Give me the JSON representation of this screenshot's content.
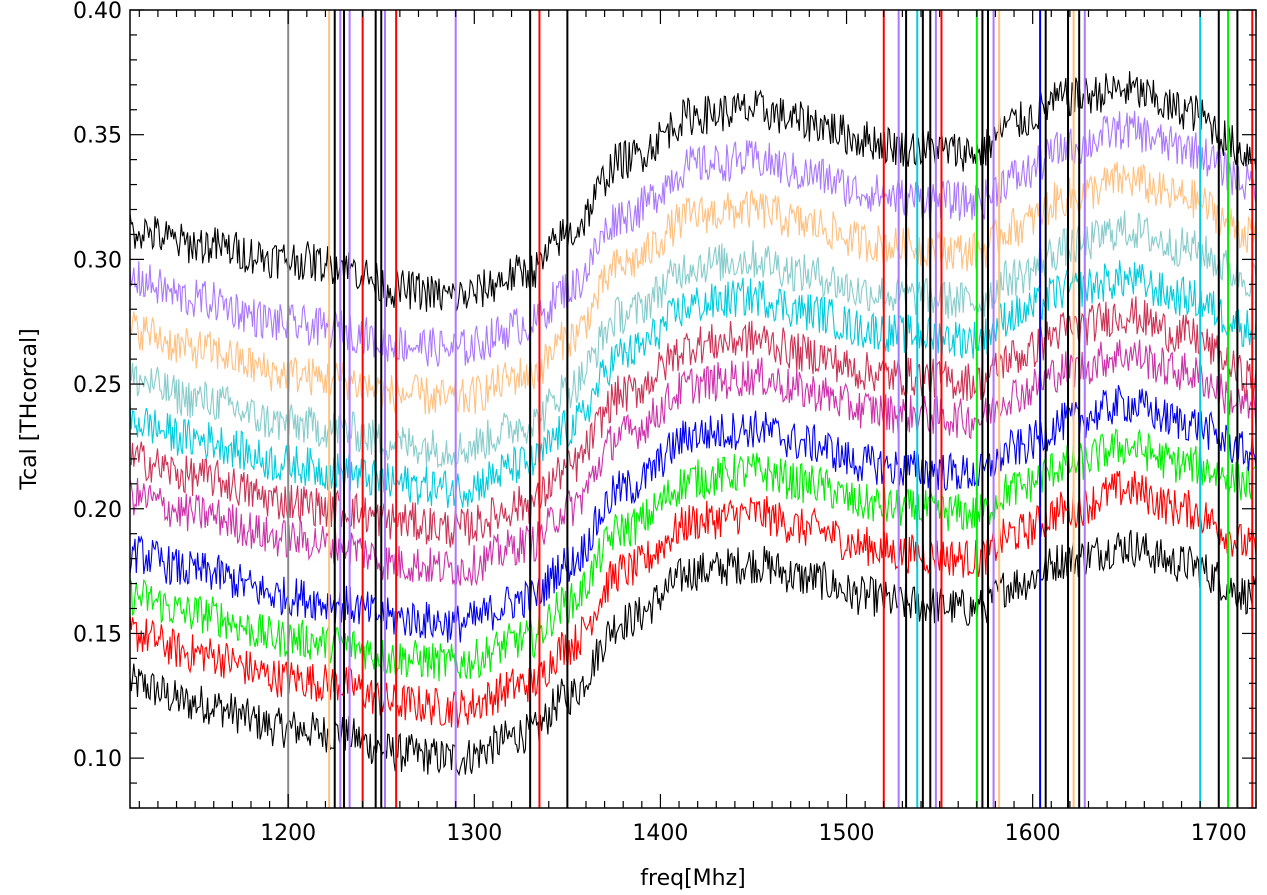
{
  "chart_data": {
    "type": "line",
    "title": "",
    "xlabel": "freq[Mhz]",
    "ylabel": "Tcal [THcorcal]",
    "xlim": [
      1115,
      1720
    ],
    "ylim": [
      0.08,
      0.4
    ],
    "x_ticks": [
      1200,
      1300,
      1400,
      1500,
      1600,
      1700
    ],
    "x_tick_labels": [
      "1200",
      "1300",
      "1400",
      "1500",
      "1600",
      "1700"
    ],
    "y_ticks": [
      0.1,
      0.15,
      0.2,
      0.25,
      0.3,
      0.35,
      0.4
    ],
    "y_tick_labels": [
      "0.10",
      "0.15",
      "0.20",
      "0.25",
      "0.30",
      "0.35",
      "0.40"
    ],
    "grid": false,
    "legend": "none",
    "profile_x": [
      1115,
      1150,
      1200,
      1225,
      1260,
      1290,
      1330,
      1350,
      1380,
      1420,
      1450,
      1480,
      1510,
      1530,
      1570,
      1590,
      1620,
      1650,
      1680,
      1720
    ],
    "series": [
      {
        "color": "#000000",
        "values": [
          0.13,
          0.122,
          0.112,
          0.11,
          0.102,
          0.1,
          0.11,
          0.125,
          0.155,
          0.175,
          0.178,
          0.172,
          0.165,
          0.162,
          0.16,
          0.17,
          0.18,
          0.185,
          0.178,
          0.165
        ]
      },
      {
        "color": "#ff0000",
        "values": [
          0.15,
          0.142,
          0.132,
          0.13,
          0.122,
          0.12,
          0.13,
          0.145,
          0.175,
          0.195,
          0.198,
          0.192,
          0.185,
          0.182,
          0.18,
          0.19,
          0.2,
          0.208,
          0.2,
          0.185
        ]
      },
      {
        "color": "#00ee00",
        "values": [
          0.165,
          0.158,
          0.148,
          0.146,
          0.14,
          0.138,
          0.148,
          0.162,
          0.192,
          0.212,
          0.215,
          0.21,
          0.202,
          0.2,
          0.198,
          0.208,
          0.218,
          0.225,
          0.218,
          0.21
        ]
      },
      {
        "color": "#0000ee",
        "values": [
          0.182,
          0.175,
          0.165,
          0.162,
          0.156,
          0.154,
          0.164,
          0.178,
          0.208,
          0.23,
          0.232,
          0.226,
          0.218,
          0.216,
          0.214,
          0.224,
          0.235,
          0.242,
          0.235,
          0.222
        ]
      },
      {
        "color": "#cc33aa",
        "values": [
          0.205,
          0.198,
          0.188,
          0.186,
          0.178,
          0.176,
          0.186,
          0.2,
          0.23,
          0.25,
          0.253,
          0.247,
          0.24,
          0.238,
          0.236,
          0.246,
          0.256,
          0.262,
          0.255,
          0.24
        ]
      },
      {
        "color": "#cc3355",
        "values": [
          0.22,
          0.213,
          0.203,
          0.2,
          0.195,
          0.192,
          0.202,
          0.216,
          0.246,
          0.266,
          0.268,
          0.262,
          0.255,
          0.253,
          0.251,
          0.261,
          0.272,
          0.278,
          0.27,
          0.252
        ]
      },
      {
        "color": "#00ccdd",
        "values": [
          0.235,
          0.228,
          0.218,
          0.215,
          0.21,
          0.208,
          0.218,
          0.232,
          0.262,
          0.282,
          0.285,
          0.279,
          0.272,
          0.27,
          0.268,
          0.278,
          0.288,
          0.292,
          0.285,
          0.272
        ]
      },
      {
        "color": "#88cccc",
        "values": [
          0.252,
          0.244,
          0.234,
          0.232,
          0.226,
          0.224,
          0.234,
          0.248,
          0.278,
          0.298,
          0.3,
          0.294,
          0.287,
          0.285,
          0.283,
          0.293,
          0.305,
          0.312,
          0.305,
          0.292
        ]
      },
      {
        "color": "#ffc080",
        "values": [
          0.272,
          0.264,
          0.254,
          0.252,
          0.246,
          0.244,
          0.254,
          0.268,
          0.298,
          0.318,
          0.32,
          0.314,
          0.307,
          0.305,
          0.303,
          0.313,
          0.325,
          0.332,
          0.325,
          0.31
        ]
      },
      {
        "color": "#aa77ff",
        "values": [
          0.292,
          0.284,
          0.274,
          0.272,
          0.266,
          0.264,
          0.274,
          0.288,
          0.318,
          0.338,
          0.34,
          0.334,
          0.327,
          0.325,
          0.323,
          0.333,
          0.345,
          0.352,
          0.345,
          0.33
        ]
      },
      {
        "color": "#000000",
        "values": [
          0.312,
          0.306,
          0.3,
          0.298,
          0.288,
          0.285,
          0.295,
          0.31,
          0.34,
          0.358,
          0.36,
          0.355,
          0.348,
          0.345,
          0.343,
          0.355,
          0.365,
          0.368,
          0.36,
          0.342
        ]
      }
    ],
    "rfi_freqs": [
      1200,
      1222,
      1225,
      1228,
      1230,
      1233,
      1240,
      1247,
      1250,
      1252,
      1258,
      1290,
      1330,
      1335,
      1350,
      1520,
      1528,
      1532,
      1538,
      1541,
      1545,
      1548,
      1551,
      1570,
      1573,
      1576,
      1579,
      1582,
      1604,
      1607,
      1619,
      1622,
      1625,
      1628,
      1690,
      1700,
      1705,
      1710,
      1718
    ],
    "rfi_colors": [
      "#888888",
      "#ffc080",
      "#000000",
      "#aa77ff",
      "#000000",
      "#aa77ff",
      "#ff0000",
      "#000000",
      "#000000",
      "#aa77ff",
      "#ff0000",
      "#aa77ff",
      "#000000",
      "#ff0000",
      "#000000",
      "#ff0000",
      "#aa77ff",
      "#000000",
      "#00ccdd",
      "#000000",
      "#000000",
      "#aa77ff",
      "#ff0000",
      "#00ee00",
      "#000000",
      "#000000",
      "#aa77ff",
      "#ffc080",
      "#0000ee",
      "#000000",
      "#000000",
      "#ffc080",
      "#000000",
      "#aa77ff",
      "#00ccdd",
      "#000000",
      "#00ee00",
      "#000000",
      "#ff0000"
    ]
  }
}
